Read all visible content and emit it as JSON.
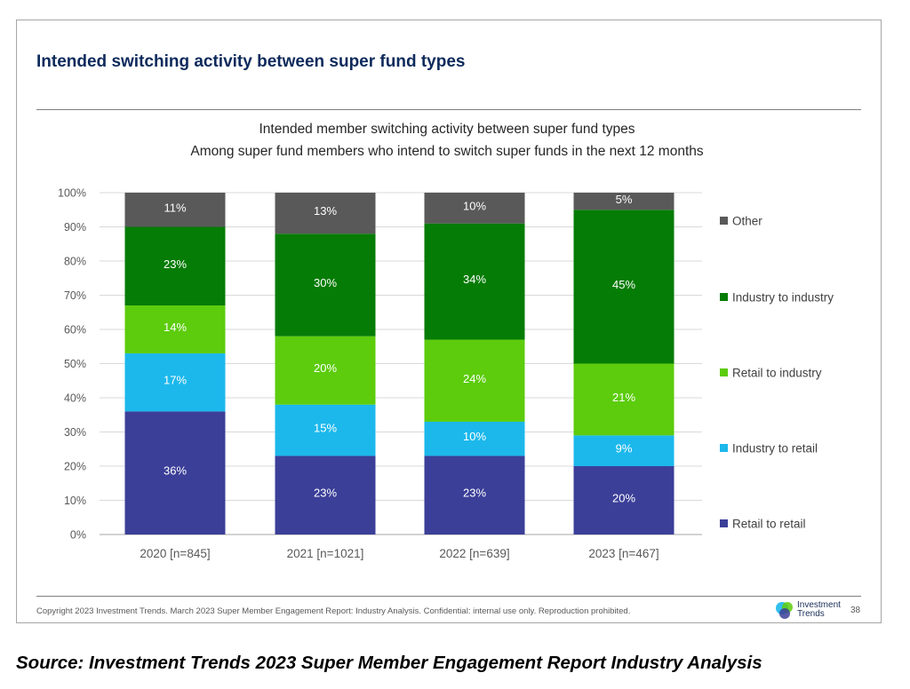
{
  "slide": {
    "title": "Intended switching activity between super fund types",
    "copyright": "Copyright 2023 Investment Trends. March 2023 Super Member Engagement Report: Industry Analysis. Confidential: internal use only. Reproduction prohibited.",
    "logo_text_line1": "Investment",
    "logo_text_line2": "Trends",
    "page_number": "38"
  },
  "source": "Source: Investment Trends 2023 Super Member Engagement Report Industry Analysis",
  "colors": {
    "other": "#595959",
    "industry_to_industry": "#057c05",
    "retail_to_industry": "#5ccc0c",
    "industry_to_retail": "#1cb8ec",
    "retail_to_retail": "#3b3f98",
    "title": "#0e2a5c"
  },
  "chart_data": {
    "type": "bar",
    "stacked": true,
    "title": "Intended member switching activity between super fund types",
    "subtitle": "Among super fund members who intend to switch super funds in the next 12 months",
    "categories": [
      "2020 [n=845]",
      "2021 [n=1021]",
      "2022 [n=639]",
      "2023 [n=467]"
    ],
    "series": [
      {
        "name": "Retail to retail",
        "values": [
          36,
          23,
          23,
          20
        ],
        "labels": [
          "36%",
          "23%",
          "23%",
          "20%"
        ],
        "color": "#3b3f98"
      },
      {
        "name": "Industry to retail",
        "values": [
          17,
          15,
          10,
          9
        ],
        "labels": [
          "17%",
          "15%",
          "10%",
          "9%"
        ],
        "color": "#1cb8ec"
      },
      {
        "name": "Retail to industry",
        "values": [
          14,
          20,
          24,
          21
        ],
        "labels": [
          "14%",
          "20%",
          "24%",
          "21%"
        ],
        "color": "#5ccc0c"
      },
      {
        "name": "Industry to industry",
        "values": [
          23,
          30,
          34,
          45
        ],
        "labels": [
          "23%",
          "30%",
          "34%",
          "45%"
        ],
        "color": "#057c05"
      },
      {
        "name": "Other",
        "values": [
          11,
          13,
          10,
          5
        ],
        "labels": [
          "11%",
          "13%",
          "10%",
          "5%"
        ],
        "color": "#595959"
      }
    ],
    "yticks": [
      "0%",
      "10%",
      "20%",
      "30%",
      "40%",
      "50%",
      "60%",
      "70%",
      "80%",
      "90%",
      "100%"
    ],
    "ylim": [
      0,
      100
    ],
    "grid": true,
    "legend": "right"
  }
}
